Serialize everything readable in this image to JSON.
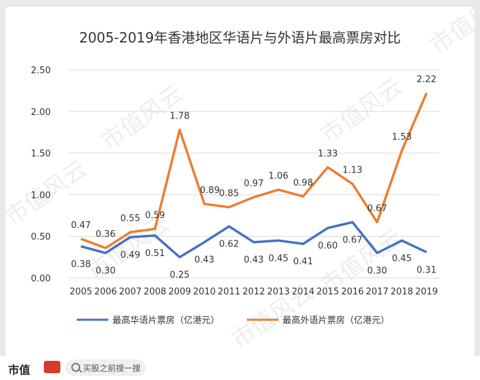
{
  "chart_data": {
    "type": "line",
    "title": "2005-2019年香港地区华语片与外语片最高票房对比",
    "x": [
      "2005",
      "2006",
      "2007",
      "2008",
      "2009",
      "2010",
      "2011",
      "2012",
      "2013",
      "2014",
      "2015",
      "2016",
      "2017",
      "2018",
      "2019"
    ],
    "ylim": [
      0,
      2.5
    ],
    "yticks": [
      "0.00",
      "0.50",
      "1.00",
      "1.50",
      "2.00",
      "2.50"
    ],
    "grid": true,
    "legend_position": "bottom",
    "series": [
      {
        "name": "最高华语片票房（亿港元）",
        "color": "#4472c4",
        "values": [
          0.38,
          0.3,
          0.49,
          0.51,
          0.25,
          0.43,
          0.62,
          0.43,
          0.45,
          0.41,
          0.6,
          0.67,
          0.3,
          0.45,
          0.31
        ],
        "labels": [
          "0.38",
          "0.30",
          "0.49",
          "0.51",
          "0.25",
          "0.43",
          "0.62",
          "0.43",
          "0.45",
          "0.41",
          "0.60",
          "0.67",
          "0.30",
          "0.45",
          "0.31"
        ]
      },
      {
        "name": "最高外语片票房（亿港元）",
        "color": "#ed7d31",
        "values": [
          0.47,
          0.36,
          0.55,
          0.59,
          1.78,
          0.89,
          0.85,
          0.97,
          1.06,
          0.98,
          1.33,
          1.13,
          0.67,
          1.53,
          2.22
        ],
        "labels": [
          "0.47",
          "0.36",
          "0.55",
          "0.59",
          "1.78",
          "0.89",
          "0.85",
          "0.97",
          "1.06",
          "0.98",
          "1.33",
          "1.13",
          "0.67",
          "1.53",
          "2.22"
        ]
      }
    ]
  },
  "watermark": "市值风云",
  "footer": {
    "brand": "市值",
    "search_placeholder": "买股之前搜一搜"
  }
}
